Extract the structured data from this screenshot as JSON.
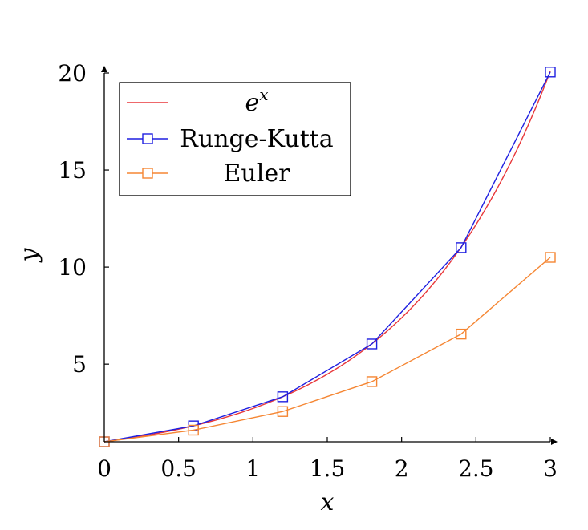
{
  "chart_data": {
    "type": "line",
    "xlabel": "x",
    "ylabel": "y",
    "xlim": [
      0,
      3
    ],
    "ylim": [
      1,
      20
    ],
    "x_ticks": [
      0,
      0.5,
      1,
      1.5,
      2,
      2.5,
      3
    ],
    "x_tick_labels": [
      "0",
      "0.5",
      "1",
      "1.5",
      "2",
      "2.5",
      "3"
    ],
    "y_ticks": [
      5,
      10,
      15,
      20
    ],
    "y_tick_labels": [
      "5",
      "10",
      "15",
      "20"
    ],
    "grid": false,
    "legend_placement": "top-left",
    "series": [
      {
        "name": "e^x",
        "legend_base": "e",
        "legend_sup": "x",
        "color": "#e8373a",
        "marker": "none",
        "function": "exp",
        "x_range": [
          0,
          3
        ]
      },
      {
        "name": "Runge-Kutta",
        "color": "#1f1fe0",
        "marker": "square",
        "x": [
          0,
          0.6,
          1.2,
          1.8,
          2.4,
          3
        ],
        "values": [
          1,
          1.82,
          3.32,
          6.04,
          11.0,
          20.05
        ]
      },
      {
        "name": "Euler",
        "color": "#f58633",
        "marker": "square",
        "x": [
          0,
          0.6,
          1.2,
          1.8,
          2.4,
          3
        ],
        "values": [
          1,
          1.6,
          2.56,
          4.1,
          6.55,
          10.5
        ]
      }
    ]
  }
}
